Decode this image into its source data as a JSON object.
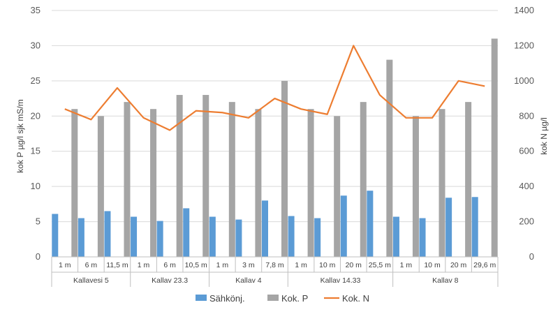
{
  "chart_data": {
    "type": "bar",
    "title": "",
    "ylabel": "kok P µg/l sjk mS/m",
    "y2label": "kok N µg/l",
    "ylim": [
      0,
      35
    ],
    "yticks": [
      0,
      5,
      10,
      15,
      20,
      25,
      30,
      35
    ],
    "y2lim": [
      0,
      1400
    ],
    "y2ticks": [
      0,
      200,
      400,
      600,
      800,
      1000,
      1200,
      1400
    ],
    "grid": true,
    "legend": "bottom",
    "groups": [
      {
        "name": "Kallavesi 5",
        "categories": [
          "1 m",
          "6 m",
          "11,5 m"
        ]
      },
      {
        "name": "Kallav 23.3",
        "categories": [
          "1 m",
          "6 m",
          "10,5 m"
        ]
      },
      {
        "name": "Kallav 4",
        "categories": [
          "1 m",
          "3 m",
          "7,8 m"
        ]
      },
      {
        "name": "Kallav 14.33",
        "categories": [
          "1 m",
          "10 m",
          "20 m",
          "25,5 m"
        ]
      },
      {
        "name": "Kallav 8",
        "categories": [
          "1 m",
          "10 m",
          "20 m",
          "29,6 m"
        ]
      }
    ],
    "series": [
      {
        "name": "Sähkönj.",
        "type": "bar",
        "axis": "left",
        "color": "#5b9bd5",
        "values": [
          6.1,
          5.5,
          6.5,
          5.7,
          5.1,
          6.9,
          5.7,
          5.3,
          8.0,
          5.8,
          5.5,
          8.7,
          9.4,
          5.7,
          5.5,
          8.4,
          8.5
        ]
      },
      {
        "name": "Kok. P",
        "type": "bar",
        "axis": "left",
        "color": "#a5a5a5",
        "values": [
          21,
          20,
          22,
          21,
          23,
          23,
          22,
          21,
          25,
          21,
          20,
          22,
          28,
          20,
          21,
          22,
          31
        ]
      },
      {
        "name": "Kok. N",
        "type": "line",
        "axis": "right",
        "color": "#ed7d31",
        "values": [
          840,
          780,
          960,
          790,
          720,
          830,
          820,
          790,
          900,
          840,
          810,
          1200,
          920,
          790,
          790,
          1000,
          970
        ]
      }
    ]
  }
}
